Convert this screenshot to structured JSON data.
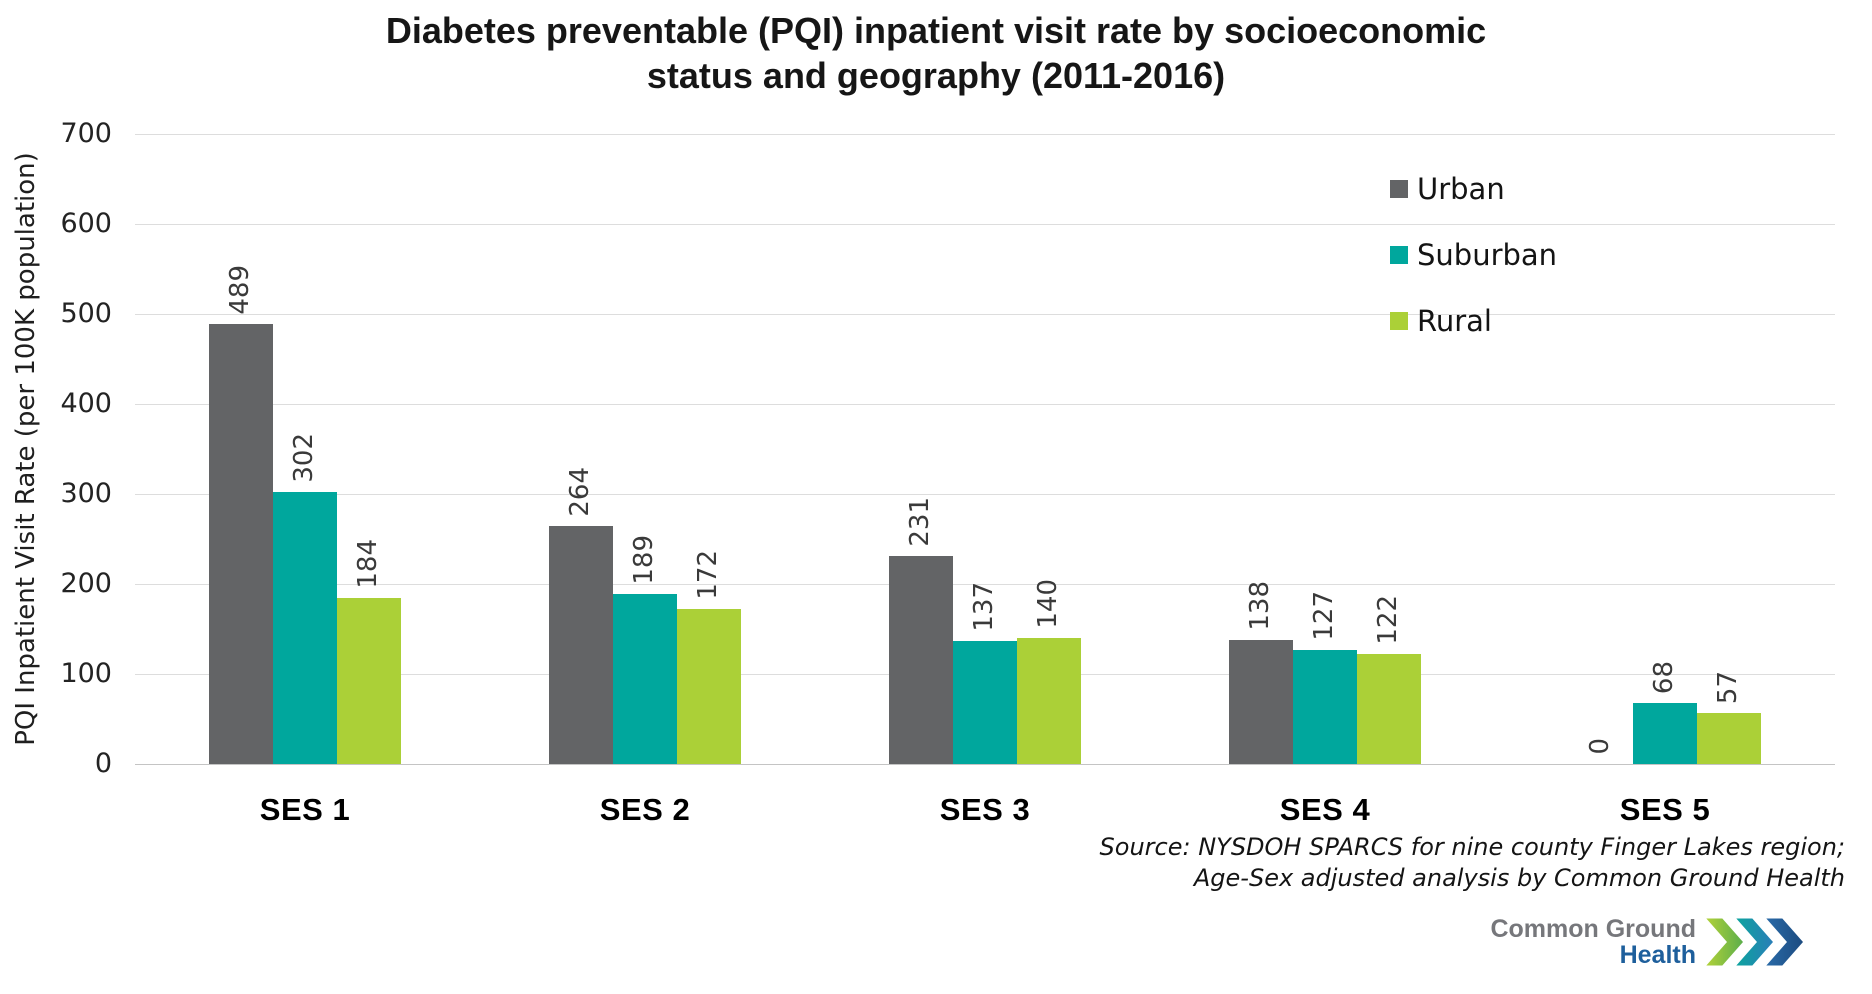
{
  "header": {
    "title_lines": [
      "Diabetes preventable (PQI) inpatient visit rate by socioeconomic",
      "status and geography (2011-2016)"
    ]
  },
  "chart_data": {
    "type": "bar",
    "title": "Diabetes preventable (PQI) inpatient visit rate by socioeconomic status and geography (2011-2016)",
    "ylabel": "PQI Inpatient Visit Rate (per 100K population)",
    "xlabel": "",
    "ylim": [
      0,
      700
    ],
    "ytick_step": 100,
    "grid": true,
    "legend_position": "top-right",
    "categories": [
      "SES 1",
      "SES 2",
      "SES 3",
      "SES 4",
      "SES 5"
    ],
    "series": [
      {
        "name": "Urban",
        "color": "#636466",
        "values": [
          489,
          264,
          231,
          138,
          0
        ]
      },
      {
        "name": "Suburban",
        "color": "#00a79d",
        "values": [
          302,
          189,
          137,
          127,
          68
        ]
      },
      {
        "name": "Rural",
        "color": "#abd037",
        "values": [
          184,
          172,
          140,
          122,
          57
        ]
      }
    ]
  },
  "source": {
    "line1": "Source: NYSDOH SPARCS for nine county Finger Lakes region;",
    "line2": "Age-Sex adjusted analysis by Common Ground Health"
  },
  "logo": {
    "name_line1": "Common Ground",
    "name_line2": "Health",
    "text_color_primary": "#76777b",
    "text_color_secondary": "#1e5f9c",
    "chevron_colors": [
      "#a6ce39",
      "#00a79d",
      "#1f5c99"
    ]
  }
}
